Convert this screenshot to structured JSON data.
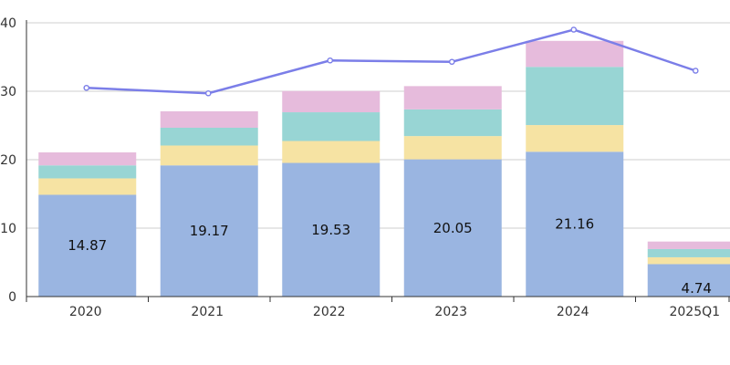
{
  "chart_data": {
    "type": "bar",
    "stacked": true,
    "categories": [
      "2020",
      "2021",
      "2022",
      "2023",
      "2024",
      "2025Q1"
    ],
    "ylim": [
      0,
      40
    ],
    "y_ticks": [
      "0",
      "10",
      "20",
      "30",
      "40"
    ],
    "grid": true,
    "series": [
      {
        "values": [
          14.87,
          19.17,
          19.53,
          20.05,
          21.16,
          4.74
        ],
        "color": "#9ab5e1",
        "show_labels": true
      },
      {
        "values": [
          2.4,
          2.9,
          3.2,
          3.4,
          3.9,
          1.0
        ],
        "color": "#f6e3a3",
        "show_labels": false
      },
      {
        "values": [
          1.9,
          2.6,
          4.2,
          3.9,
          8.5,
          1.2
        ],
        "color": "#98d5d4",
        "show_labels": false
      },
      {
        "values": [
          1.9,
          2.4,
          3.1,
          3.4,
          3.8,
          1.1
        ],
        "color": "#e6bbdc",
        "show_labels": false
      }
    ],
    "line_series": {
      "values": [
        30.5,
        29.7,
        34.5,
        34.3,
        39.0,
        33.0
      ],
      "color": "#7b7ee8"
    }
  }
}
